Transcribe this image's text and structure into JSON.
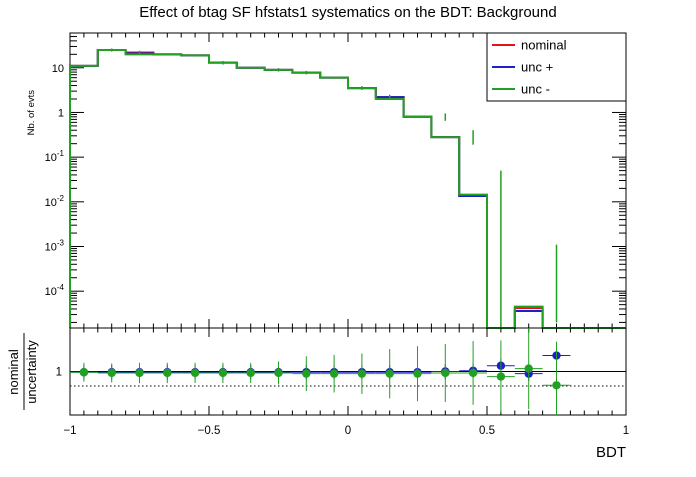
{
  "chart_data": [
    {
      "type": "step",
      "panel": "main",
      "title": "Effect of btag SF hfstats1 systematics on the BDT: Background",
      "xlabel": "",
      "ylabel": "Nb. of evts",
      "yscale": "log",
      "ylim": [
        1.5e-05,
        60
      ],
      "xlim": [
        -1,
        1
      ],
      "x_ticks": [
        -1,
        -0.5,
        0,
        0.5,
        1
      ],
      "y_ticks": [
        {
          "value": 0.0001,
          "base": "10",
          "exp": "-4"
        },
        {
          "value": 0.001,
          "base": "10",
          "exp": "-3"
        },
        {
          "value": 0.01,
          "base": "10",
          "exp": "-2"
        },
        {
          "value": 0.1,
          "base": "10",
          "exp": "-1"
        },
        {
          "value": 1,
          "base": "1",
          "exp": ""
        },
        {
          "value": 10,
          "base": "10",
          "exp": ""
        }
      ],
      "legend_position": "top-right",
      "bin_edges": [
        -1,
        -0.9,
        -0.8,
        -0.7,
        -0.6,
        -0.5,
        -0.4,
        -0.3,
        -0.2,
        -0.1,
        0,
        0.1,
        0.2,
        0.3,
        0.4,
        0.5,
        0.6,
        0.7,
        0.8,
        0.9,
        1
      ],
      "series": [
        {
          "name": "nominal",
          "color": "#e8101a",
          "values": [
            11,
            25,
            22,
            20,
            19,
            13,
            10,
            9,
            7.8,
            6,
            3.5,
            2.2,
            0.8,
            0.28,
            0.014,
            null,
            4.2e-05,
            null,
            null,
            null
          ]
        },
        {
          "name": "unc +",
          "color": "#1b20c8",
          "values": [
            11,
            25,
            21,
            20,
            19,
            13,
            10,
            9,
            7.8,
            6,
            3.5,
            2.2,
            0.8,
            0.28,
            0.0135,
            null,
            3.6e-05,
            null,
            null,
            null
          ]
        },
        {
          "name": "unc -",
          "color": "#22a022",
          "values": [
            11,
            25,
            20,
            20,
            19,
            13,
            10,
            9,
            7.8,
            6,
            3.5,
            2.0,
            0.8,
            0.28,
            0.0145,
            null,
            4.5e-05,
            null,
            null,
            null
          ]
        }
      ],
      "error_bars": [
        {
          "x": -0.85,
          "low": 23,
          "high": 27
        },
        {
          "x": -0.75,
          "low": 20,
          "high": 24
        },
        {
          "x": -0.45,
          "low": 11.8,
          "high": 14.2
        },
        {
          "x": -0.25,
          "low": 8.2,
          "high": 9.8
        },
        {
          "x": -0.15,
          "low": 7.1,
          "high": 8.5
        },
        {
          "x": 0.05,
          "low": 3.2,
          "high": 3.9
        },
        {
          "x": 0.15,
          "low": 1.9,
          "high": 2.5
        },
        {
          "x": 0.35,
          "low": 0.65,
          "high": 0.95
        },
        {
          "x": 0.45,
          "low": 0.19,
          "high": 0.4
        },
        {
          "x": 0.55,
          "low": 1e-05,
          "high": 0.05
        },
        {
          "x": 0.75,
          "low": 2e-05,
          "high": 0.0011
        }
      ]
    },
    {
      "type": "scatter",
      "panel": "ratio",
      "xlabel": "BDT",
      "ylabel_line1": "nominal",
      "ylabel_line2": "uncertainty",
      "xlim": [
        -1,
        1
      ],
      "ylim": [
        0.7,
        1.3
      ],
      "y_ticks": [
        {
          "value": 1,
          "label": "1"
        }
      ],
      "reference_lines": [
        {
          "value": 1,
          "style": "solid"
        },
        {
          "value": 0.9,
          "style": "dotted"
        }
      ],
      "x_ticks": [
        -1,
        -0.5,
        0,
        0.5,
        1
      ],
      "series": [
        {
          "name": "unc +",
          "color": "#1b20c8",
          "x": [
            -0.95,
            -0.85,
            -0.75,
            -0.65,
            -0.55,
            -0.45,
            -0.35,
            -0.25,
            -0.15,
            -0.05,
            0.05,
            0.15,
            0.25,
            0.35,
            0.45,
            0.55,
            0.65,
            0.75
          ],
          "y": [
            0.995,
            0.995,
            0.995,
            0.995,
            0.995,
            0.995,
            0.995,
            0.995,
            0.995,
            0.995,
            0.995,
            0.995,
            0.995,
            1.0,
            1.005,
            1.04,
            0.985,
            1.11
          ],
          "err": [
            0.05,
            0.05,
            0.05,
            0.05,
            0.05,
            0.05,
            0.05,
            0.05,
            0.05,
            0.05,
            0.05,
            0.05,
            0.05,
            0.05,
            0.05,
            0.05,
            0.05,
            0.05
          ]
        },
        {
          "name": "unc -",
          "color": "#22a022",
          "x": [
            -0.95,
            -0.85,
            -0.75,
            -0.65,
            -0.55,
            -0.45,
            -0.35,
            -0.25,
            -0.15,
            -0.05,
            0.05,
            0.15,
            0.25,
            0.35,
            0.45,
            0.55,
            0.65,
            0.75
          ],
          "y": [
            0.995,
            0.99,
            0.99,
            0.99,
            0.99,
            0.99,
            0.99,
            0.99,
            0.985,
            0.985,
            0.985,
            0.985,
            0.985,
            0.99,
            0.99,
            0.965,
            1.02,
            0.905
          ],
          "err": [
            0.065,
            0.065,
            0.07,
            0.07,
            0.07,
            0.07,
            0.07,
            0.08,
            0.12,
            0.13,
            0.14,
            0.17,
            0.19,
            0.2,
            0.22,
            0.25,
            0.28,
            0.3
          ]
        }
      ]
    }
  ]
}
